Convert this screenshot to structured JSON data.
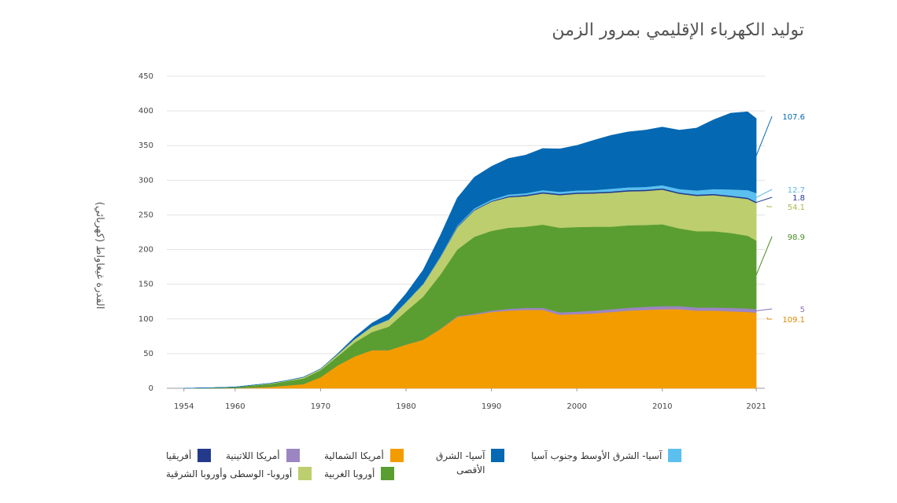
{
  "chart_data": {
    "type": "area",
    "stacked": true,
    "title": "توليد الكهرباء الإقليمي بمرور الزمن",
    "ylabel": "القدرة غيغاواط (كهربائي)",
    "xlabel": "",
    "xlim": [
      1952,
      2022
    ],
    "ylim": [
      0,
      450
    ],
    "yticks": [
      0,
      50,
      100,
      150,
      200,
      250,
      300,
      350,
      400,
      450
    ],
    "xticks": [
      1954,
      1960,
      1970,
      1980,
      1990,
      2000,
      2010,
      2021
    ],
    "grid": true,
    "legend_position": "bottom",
    "x": [
      1954,
      1956,
      1958,
      1960,
      1962,
      1964,
      1966,
      1968,
      1970,
      1972,
      1974,
      1976,
      1978,
      1980,
      1982,
      1984,
      1986,
      1988,
      1990,
      1992,
      1994,
      1996,
      1998,
      2000,
      2002,
      2004,
      2006,
      2008,
      2010,
      2012,
      2014,
      2016,
      2018,
      2020,
      2021
    ],
    "series": [
      {
        "name": "أمريكا الشمالية",
        "color": "#f39c00",
        "end_label": "109.1",
        "label_color": "#e08900",
        "values": [
          0,
          0,
          0,
          0.3,
          1,
          2,
          4,
          6,
          16,
          33,
          46,
          55,
          55,
          63,
          70,
          85,
          103,
          106,
          110,
          112,
          113,
          113,
          106,
          107,
          108,
          110,
          112,
          113,
          114,
          114,
          112,
          112,
          111,
          110,
          109.1
        ]
      },
      {
        "name": "أمريكا اللاتينية",
        "color": "#9b86c2",
        "end_label": "5",
        "label_color": "#8a73b8",
        "values": [
          0,
          0,
          0,
          0,
          0,
          0,
          0,
          0,
          0,
          0,
          0,
          0,
          0,
          0,
          0,
          0.5,
          1,
          1.5,
          2,
          2.5,
          3,
          3,
          3.5,
          3.5,
          4,
          4,
          4,
          4.5,
          4.5,
          4.5,
          4.5,
          4.5,
          5,
          5,
          5
        ]
      },
      {
        "name": "أوروبا الغربية",
        "color": "#5a9e32",
        "end_label": "98.9",
        "label_color": "#4a8e25",
        "values": [
          0,
          0.5,
          1,
          1.5,
          3,
          4,
          6,
          8,
          10,
          13,
          20,
          26,
          34,
          48,
          62,
          78,
          96,
          111,
          115,
          117,
          117,
          120,
          122,
          122,
          121,
          119,
          119,
          118,
          118,
          112,
          110,
          110,
          108,
          105,
          98.9
        ]
      },
      {
        "name": "أوروبا- الوسطى وأوروبا الشرقية",
        "color": "#bcce6e",
        "end_label": "54.1",
        "label_color": "#a8bb4a",
        "values": [
          0,
          0,
          0,
          0,
          0.5,
          1,
          1,
          2,
          2,
          3,
          5,
          8,
          10,
          13,
          18,
          25,
          32,
          38,
          42,
          44,
          44,
          45,
          47,
          48,
          48,
          49,
          49,
          49,
          50,
          50,
          51,
          52,
          52,
          53,
          54.1
        ]
      },
      {
        "name": "أفريقيا",
        "color": "#233a8c",
        "end_label": "1.8",
        "label_color": "#233a8c",
        "values": [
          0,
          0,
          0,
          0,
          0,
          0,
          0,
          0,
          0,
          0,
          0,
          0,
          0,
          0,
          0,
          0.5,
          1,
          1,
          1,
          1.5,
          1.8,
          1.8,
          1.8,
          1.8,
          1.8,
          1.8,
          1.8,
          1.8,
          1.8,
          1.8,
          1.8,
          1.8,
          1.8,
          1.8,
          1.8
        ]
      },
      {
        "name": "آسيا- الشرق الأوسط وجنوب آسيا",
        "color": "#5bc0ef",
        "end_label": "12.7",
        "label_color": "#5bb8e6",
        "values": [
          0,
          0,
          0,
          0,
          0,
          0,
          0,
          0,
          0,
          0,
          0,
          0,
          0.5,
          0.5,
          0.5,
          1,
          1.5,
          2,
          2,
          2.5,
          2.5,
          3,
          3,
          3,
          3,
          4,
          4,
          4,
          4.5,
          5,
          6,
          7,
          9,
          11,
          12.7
        ]
      },
      {
        "name": "آسيا- الشرق الأقصى",
        "color": "#0568b3",
        "end_label": "107.6",
        "label_color": "#0568b3",
        "values": [
          0,
          0,
          0,
          0,
          0,
          0,
          0,
          0,
          0,
          1,
          3,
          5,
          8,
          12,
          20,
          30,
          40,
          45,
          48,
          52,
          55,
          60,
          62,
          65,
          72,
          77,
          80,
          82,
          84,
          85,
          90,
          100,
          110,
          113,
          107.6
        ]
      }
    ]
  },
  "legend_layout": [
    {
      "series": 0,
      "label_lines": [
        "أمريكا الشمالية"
      ]
    },
    {
      "series": 1,
      "label_lines": [
        "أمريكا اللاتينية"
      ]
    },
    {
      "series": 2,
      "label_lines": [
        "أوروبا الغربية"
      ]
    },
    {
      "series": 3,
      "label_lines": [
        "أوروبا- الوسطى وأوروبا الشرقية"
      ]
    },
    {
      "series": 4,
      "label_lines": [
        "أفريقيا"
      ]
    },
    {
      "series": 5,
      "label_lines": [
        "آسيا- الشرق الأوسط وجنوب آسيا"
      ]
    },
    {
      "series": 6,
      "label_lines": [
        "آسيا- الشرق",
        "الأقصى"
      ]
    }
  ]
}
